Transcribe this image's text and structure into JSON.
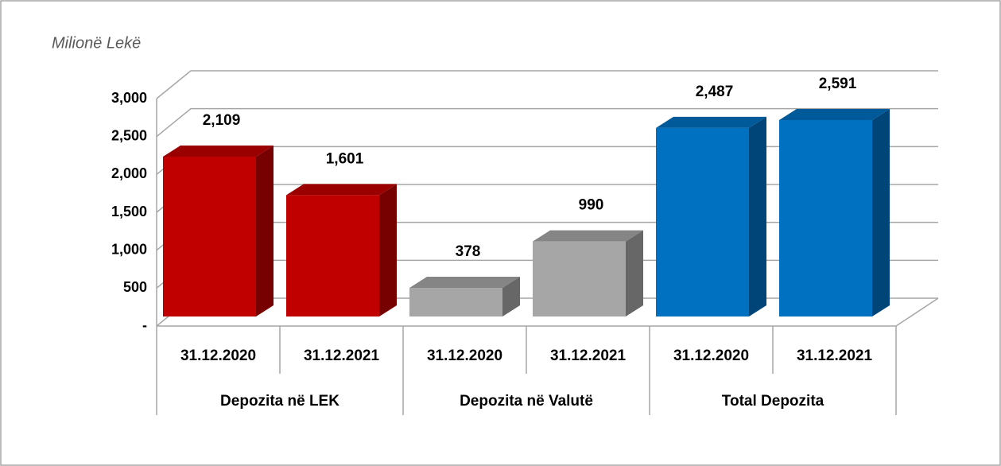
{
  "chart_data": {
    "type": "bar3d",
    "subtitle": "Milionë Lekë",
    "categories": [
      "31.12.2020",
      "31.12.2021",
      "31.12.2020",
      "31.12.2021",
      "31.12.2020",
      "31.12.2021"
    ],
    "groups": [
      "Depozita në LEK",
      "Depozita në Valutë",
      "Total Depozita"
    ],
    "values": [
      2109,
      1601,
      378,
      990,
      2487,
      2591
    ],
    "value_labels": [
      "2,109",
      "1,601",
      "378",
      "990",
      "2,487",
      "2,591"
    ],
    "colors": [
      "#c00000",
      "#c00000",
      "#a6a6a6",
      "#a6a6a6",
      "#0070c0",
      "#0070c0"
    ],
    "ylim": [
      0,
      3000
    ],
    "yticks": [
      {
        "value": 0,
        "label": "-"
      },
      500,
      {
        "value": 1000,
        "label": "1,000"
      },
      {
        "value": 1500,
        "label": "1,500"
      },
      {
        "value": 2000,
        "label": "2,000"
      },
      {
        "value": 2500,
        "label": "2,500"
      },
      {
        "value": 3000,
        "label": "3,000"
      }
    ],
    "grid": true
  }
}
